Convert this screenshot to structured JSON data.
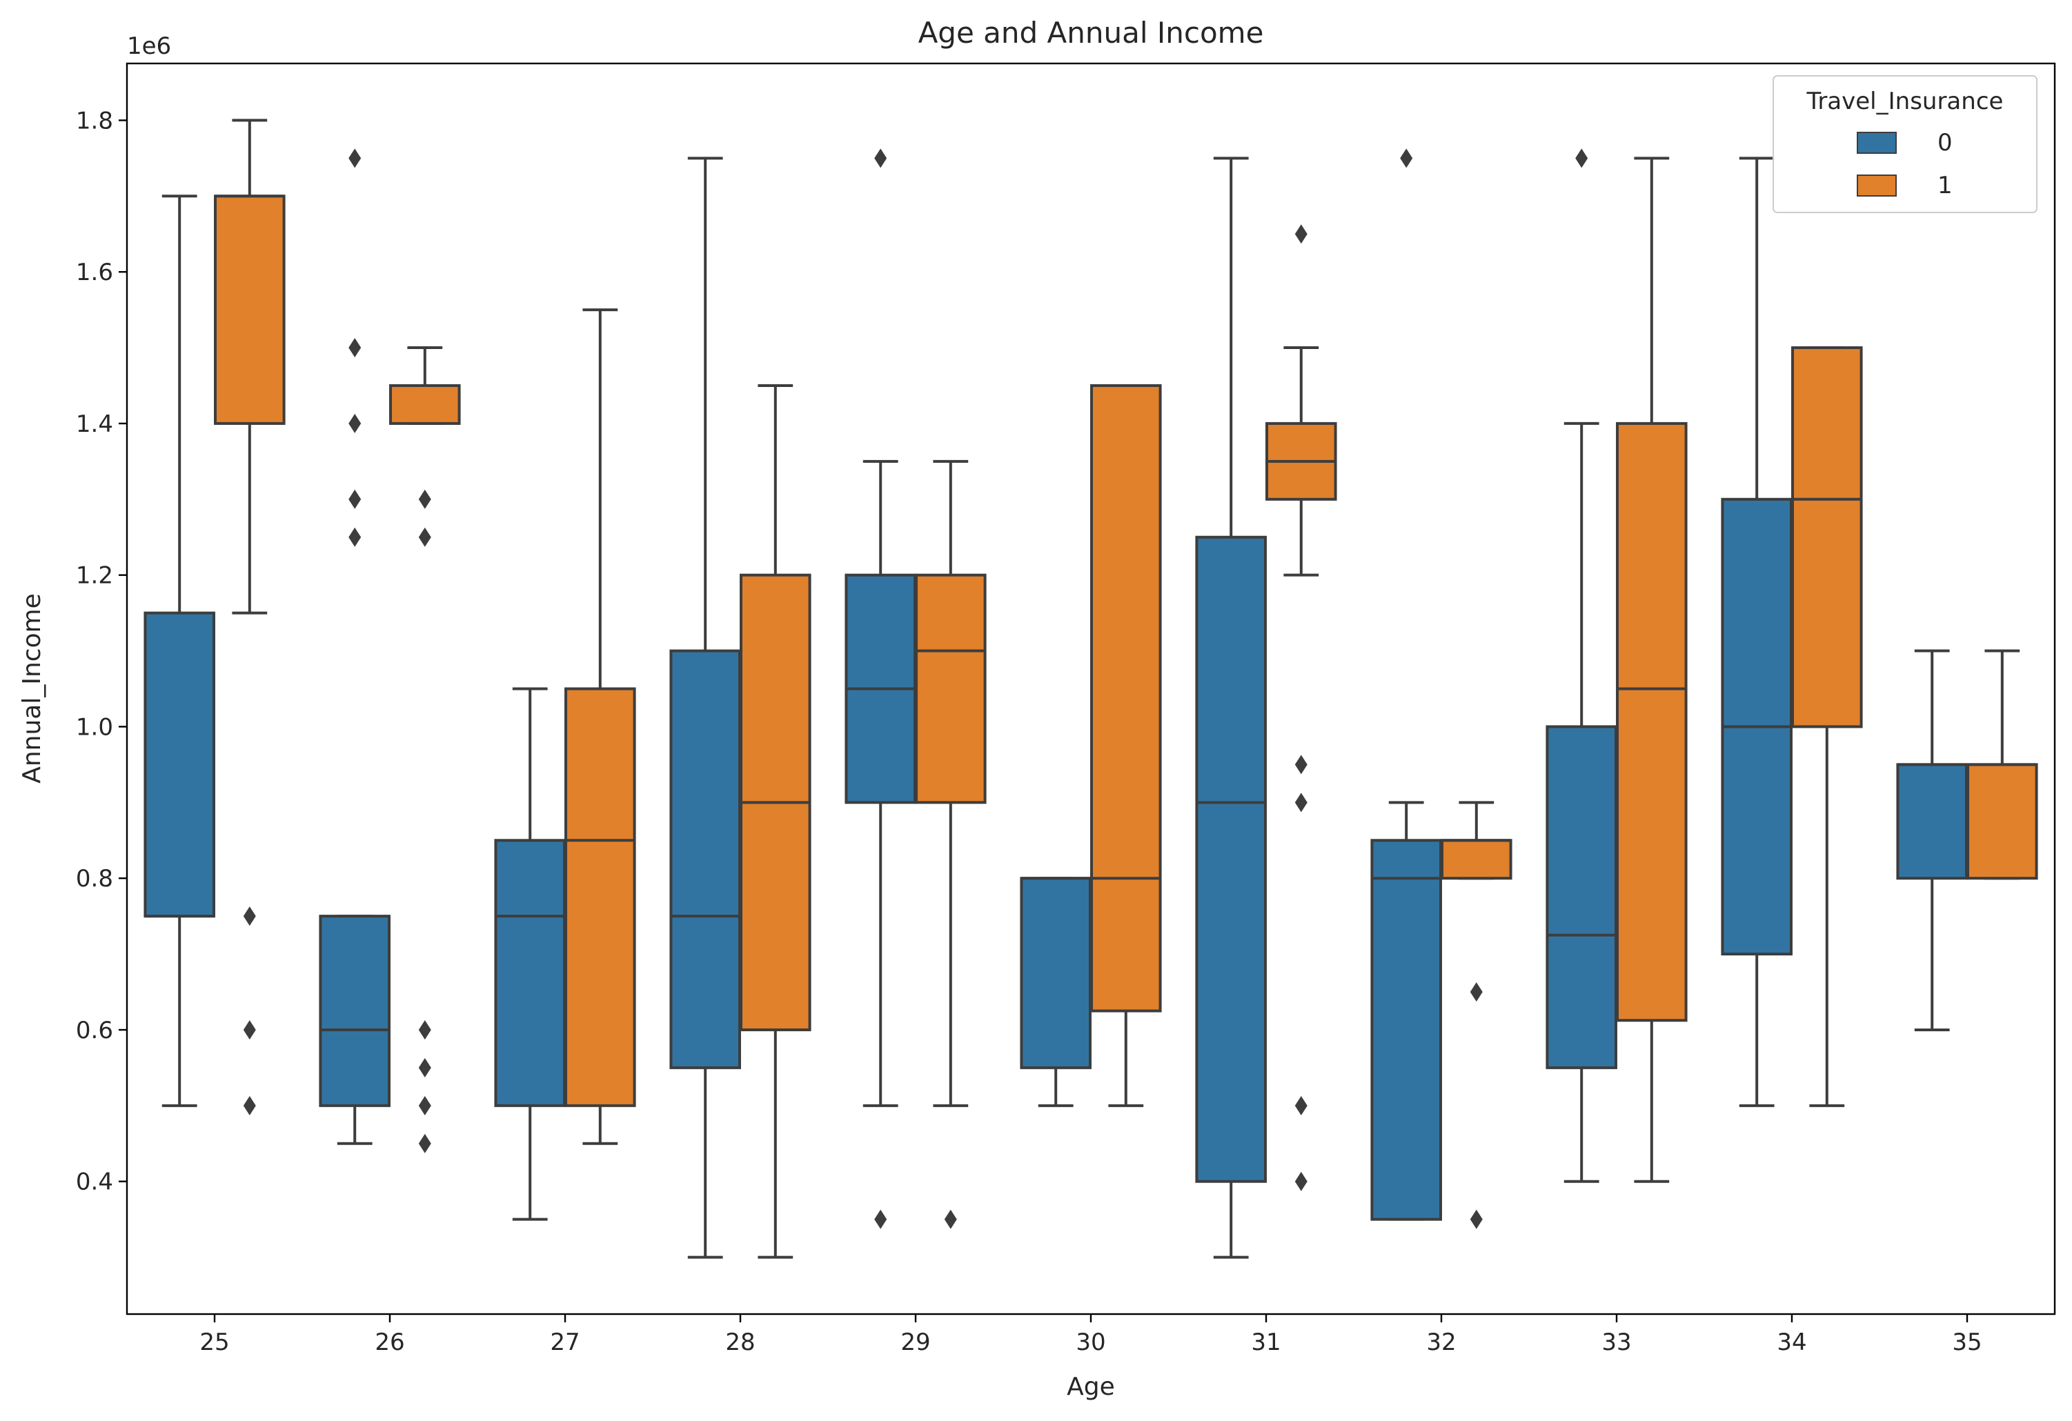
{
  "chart_data": {
    "type": "box",
    "title": "Age and Annual Income",
    "xlabel": "Age",
    "ylabel": "Annual_Income",
    "y_offset_label": "1e6",
    "y_scale": 1000000,
    "ylim": [
      225000,
      1875000
    ],
    "yticks": [
      0.4,
      0.6,
      0.8,
      1.0,
      1.2,
      1.4,
      1.6,
      1.8
    ],
    "categories": [
      "25",
      "26",
      "27",
      "28",
      "29",
      "30",
      "31",
      "32",
      "33",
      "34",
      "35"
    ],
    "legend": {
      "title": "Travel_Insurance",
      "placement": "top-right",
      "entries": [
        {
          "label": "0",
          "color": "#3274a1"
        },
        {
          "label": "1",
          "color": "#e1812c"
        }
      ]
    },
    "line_color": "#3d3d3d",
    "series": [
      {
        "name": "0",
        "color": "#3274a1",
        "boxes": [
          {
            "category": "25",
            "whisker_low": 500000,
            "q1": 750000,
            "median": 750000,
            "q3": 1150000,
            "whisker_high": 1700000,
            "outliers": []
          },
          {
            "category": "26",
            "whisker_low": 450000,
            "q1": 500000,
            "median": 600000,
            "q3": 750000,
            "whisker_high": 750000,
            "outliers": [
              1250000,
              1300000,
              1400000,
              1500000,
              1750000
            ]
          },
          {
            "category": "27",
            "whisker_low": 350000,
            "q1": 500000,
            "median": 750000,
            "q3": 850000,
            "whisker_high": 1050000,
            "outliers": []
          },
          {
            "category": "28",
            "whisker_low": 300000,
            "q1": 550000,
            "median": 750000,
            "q3": 1100000,
            "whisker_high": 1750000,
            "outliers": []
          },
          {
            "category": "29",
            "whisker_low": 500000,
            "q1": 900000,
            "median": 1050000,
            "q3": 1200000,
            "whisker_high": 1350000,
            "outliers": [
              350000,
              1750000
            ]
          },
          {
            "category": "30",
            "whisker_low": 500000,
            "q1": 550000,
            "median": 800000,
            "q3": 800000,
            "whisker_high": 800000,
            "outliers": []
          },
          {
            "category": "31",
            "whisker_low": 300000,
            "q1": 400000,
            "median": 900000,
            "q3": 1250000,
            "whisker_high": 1750000,
            "outliers": []
          },
          {
            "category": "32",
            "whisker_low": 350000,
            "q1": 350000,
            "median": 800000,
            "q3": 850000,
            "whisker_high": 900000,
            "outliers": [
              1750000
            ]
          },
          {
            "category": "33",
            "whisker_low": 400000,
            "q1": 550000,
            "median": 725000,
            "q3": 1000000,
            "whisker_high": 1400000,
            "outliers": [
              1750000
            ]
          },
          {
            "category": "34",
            "whisker_low": 500000,
            "q1": 700000,
            "median": 1000000,
            "q3": 1300000,
            "whisker_high": 1750000,
            "outliers": []
          },
          {
            "category": "35",
            "whisker_low": 600000,
            "q1": 800000,
            "median": 950000,
            "q3": 950000,
            "whisker_high": 1100000,
            "outliers": []
          }
        ]
      },
      {
        "name": "1",
        "color": "#e1812c",
        "boxes": [
          {
            "category": "25",
            "whisker_low": 1150000,
            "q1": 1400000,
            "median": 1700000,
            "q3": 1700000,
            "whisker_high": 1800000,
            "outliers": [
              500000,
              600000,
              750000
            ]
          },
          {
            "category": "26",
            "whisker_low": 1400000,
            "q1": 1400000,
            "median": 1450000,
            "q3": 1450000,
            "whisker_high": 1500000,
            "outliers": [
              450000,
              500000,
              550000,
              600000,
              1250000,
              1300000
            ]
          },
          {
            "category": "27",
            "whisker_low": 450000,
            "q1": 500000,
            "median": 850000,
            "q3": 1050000,
            "whisker_high": 1550000,
            "outliers": []
          },
          {
            "category": "28",
            "whisker_low": 300000,
            "q1": 600000,
            "median": 900000,
            "q3": 1200000,
            "whisker_high": 1450000,
            "outliers": []
          },
          {
            "category": "29",
            "whisker_low": 500000,
            "q1": 900000,
            "median": 1100000,
            "q3": 1200000,
            "whisker_high": 1350000,
            "outliers": [
              350000
            ]
          },
          {
            "category": "30",
            "whisker_low": 500000,
            "q1": 625000,
            "median": 800000,
            "q3": 1450000,
            "whisker_high": 1450000,
            "outliers": []
          },
          {
            "category": "31",
            "whisker_low": 1200000,
            "q1": 1300000,
            "median": 1350000,
            "q3": 1400000,
            "whisker_high": 1500000,
            "outliers": [
              400000,
              500000,
              900000,
              950000,
              1650000
            ]
          },
          {
            "category": "32",
            "whisker_low": 800000,
            "q1": 800000,
            "median": 850000,
            "q3": 850000,
            "whisker_high": 900000,
            "outliers": [
              350000,
              650000
            ]
          },
          {
            "category": "33",
            "whisker_low": 400000,
            "q1": 612500,
            "median": 1050000,
            "q3": 1400000,
            "whisker_high": 1750000,
            "outliers": []
          },
          {
            "category": "34",
            "whisker_low": 500000,
            "q1": 1000000,
            "median": 1300000,
            "q3": 1500000,
            "whisker_high": 1500000,
            "outliers": []
          },
          {
            "category": "35",
            "whisker_low": 800000,
            "q1": 800000,
            "median": 950000,
            "q3": 950000,
            "whisker_high": 1100000,
            "outliers": []
          }
        ]
      }
    ]
  }
}
